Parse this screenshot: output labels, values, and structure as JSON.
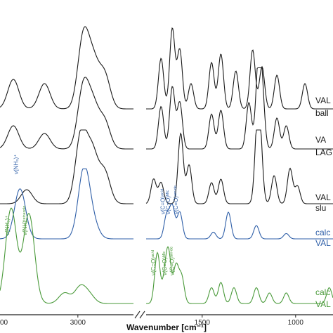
{
  "chart_data": {
    "type": "line",
    "title": "",
    "xlabel": "Wavenumber [cm⁻¹]",
    "ylabel": "",
    "x_ticks": [
      3000,
      1500,
      1000
    ],
    "x_tick_partial": "00",
    "x_axis_break": true,
    "x_left_range": [
      3350,
      2750
    ],
    "x_right_range": [
      1800,
      800
    ],
    "grid": false,
    "legend": "none",
    "series": [
      {
        "name": "VAL",
        "sublabel": "ball",
        "color": "#1a1a1a",
        "peaks_left": [
          [
            3290,
            0.35
          ],
          [
            3150,
            0.3
          ],
          [
            2975,
            0.85
          ],
          [
            2930,
            0.5
          ],
          [
            2880,
            0.4
          ]
        ],
        "peaks_right": [
          [
            1720,
            0.6
          ],
          [
            1660,
            0.95
          ],
          [
            1620,
            0.7
          ],
          [
            1560,
            0.3
          ],
          [
            1450,
            0.55
          ],
          [
            1400,
            0.65
          ],
          [
            1320,
            0.45
          ],
          [
            1230,
            0.7
          ],
          [
            1180,
            0.5
          ],
          [
            1100,
            0.4
          ],
          [
            950,
            0.3
          ]
        ]
      },
      {
        "name": "VA",
        "sublabel": "LAG",
        "color": "#1a1a1a",
        "peaks_left": [
          [
            3290,
            0.3
          ],
          [
            3150,
            0.2
          ],
          [
            2975,
            0.8
          ],
          [
            2930,
            0.5
          ],
          [
            2880,
            0.35
          ]
        ],
        "peaks_right": [
          [
            1720,
            0.55
          ],
          [
            1660,
            0.8
          ],
          [
            1620,
            0.6
          ],
          [
            1450,
            0.45
          ],
          [
            1400,
            0.5
          ],
          [
            1250,
            0.6
          ],
          [
            1200,
            1.0
          ],
          [
            1180,
            0.7
          ],
          [
            1100,
            0.4
          ],
          [
            1050,
            0.3
          ]
        ]
      },
      {
        "name": "VAL",
        "sublabel": "slu",
        "color": "#1a1a1a",
        "peaks_left": [
          [
            3230,
            0.2
          ],
          [
            2985,
            1.0
          ],
          [
            2935,
            0.7
          ],
          [
            2880,
            0.45
          ]
        ],
        "peaks_right": [
          [
            1760,
            0.35
          ],
          [
            1720,
            0.3
          ],
          [
            1615,
            1.0
          ],
          [
            1570,
            0.55
          ],
          [
            1450,
            0.3
          ],
          [
            1400,
            0.35
          ],
          [
            1205,
            0.95
          ],
          [
            1190,
            0.75
          ],
          [
            1115,
            0.4
          ],
          [
            1030,
            0.5
          ],
          [
            990,
            0.25
          ]
        ]
      },
      {
        "name": "calc",
        "sublabel": "VAL",
        "color": "#2f5fa8",
        "peaks_left": [
          [
            3260,
            0.75
          ],
          [
            2985,
            0.18
          ],
          [
            2970,
            0.9
          ],
          [
            2930,
            0.2
          ]
        ],
        "peaks_right": [
          [
            1690,
            0.35
          ],
          [
            1660,
            0.48
          ],
          [
            1620,
            0.4
          ],
          [
            1360,
            0.4
          ],
          [
            1440,
            0.1
          ],
          [
            1210,
            0.2
          ],
          [
            1050,
            0.08
          ]
        ]
      },
      {
        "name": "calc",
        "sublabel": "VAL",
        "color": "#4a9a3a",
        "peaks_left": [
          [
            3300,
            0.9
          ],
          [
            3220,
            0.85
          ],
          [
            3060,
            0.1
          ],
          [
            2990,
            0.15
          ],
          [
            2950,
            0.08
          ]
        ],
        "peaks_right": [
          [
            1740,
            0.48
          ],
          [
            1700,
            0.2
          ],
          [
            1680,
            0.45
          ],
          [
            1640,
            0.35
          ],
          [
            1610,
            0.25
          ],
          [
            1450,
            0.15
          ],
          [
            1400,
            0.2
          ],
          [
            1330,
            0.15
          ],
          [
            1210,
            0.15
          ],
          [
            1140,
            0.1
          ],
          [
            1050,
            0.1
          ],
          [
            820,
            0.15
          ]
        ]
      }
    ],
    "annotations": [
      {
        "text": "ν(NH₃)⁺",
        "color": "#2f5fa8",
        "x": 3260
      },
      {
        "text": "ν(C=O)ᵃᶜⁱᵈ",
        "color": "#2f5fa8",
        "x": 1690
      },
      {
        "text": "ν(C=O)ᴹᴵᶜ",
        "color": "#2f5fa8",
        "x": 1660
      },
      {
        "text": "ν(C=O)ᵃᵐⁱᵈᵉ",
        "color": "#2f5fa8",
        "x": 1620
      },
      {
        "text": "ν(NH₃)⁺",
        "color": "#4a9a3a",
        "x": 3300
      },
      {
        "text": "ν(NH)ᵗᵉᵗʳᵃᶻᵒˡᵉ",
        "color": "#4a9a3a",
        "x": 3220
      },
      {
        "text": "ν(C=O)ᵃᶜⁱᵈ",
        "color": "#4a9a3a",
        "x": 1740
      },
      {
        "text": "ν(C=O)ᴹᴵᶜ",
        "color": "#4a9a3a",
        "x": 1680
      },
      {
        "text": "ν(C=O)ᵃᵐⁱᵈᵉ",
        "color": "#4a9a3a",
        "x": 1640
      }
    ]
  }
}
